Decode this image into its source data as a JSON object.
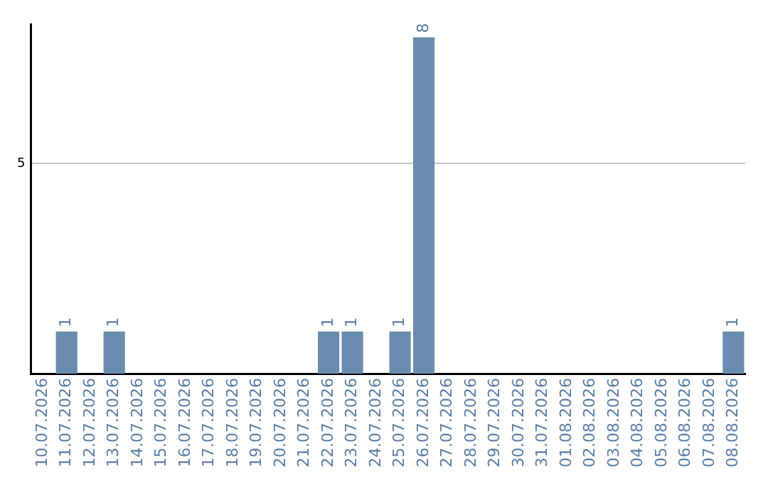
{
  "chart_data": {
    "type": "bar",
    "categories": [
      "10.07.2026",
      "11.07.2026",
      "12.07.2026",
      "13.07.2026",
      "14.07.2026",
      "15.07.2026",
      "16.07.2026",
      "17.07.2026",
      "18.07.2026",
      "19.07.2026",
      "20.07.2026",
      "21.07.2026",
      "22.07.2026",
      "23.07.2026",
      "24.07.2026",
      "25.07.2026",
      "26.07.2026",
      "27.07.2026",
      "28.07.2026",
      "29.07.2026",
      "30.07.2026",
      "31.07.2026",
      "01.08.2026",
      "02.08.2026",
      "03.08.2026",
      "04.08.2026",
      "05.08.2026",
      "06.08.2026",
      "07.08.2026",
      "08.08.2026"
    ],
    "values": [
      0,
      1,
      0,
      1,
      0,
      0,
      0,
      0,
      0,
      0,
      0,
      0,
      1,
      1,
      0,
      1,
      8,
      0,
      0,
      0,
      0,
      0,
      0,
      0,
      0,
      0,
      0,
      0,
      0,
      1
    ],
    "value_labels": [
      null,
      "1",
      null,
      "1",
      null,
      null,
      null,
      null,
      null,
      null,
      null,
      null,
      "1",
      "1",
      null,
      "1",
      "8",
      null,
      null,
      null,
      null,
      null,
      null,
      null,
      null,
      null,
      null,
      null,
      null,
      "1"
    ],
    "color": "#6a8caf",
    "ylim": [
      0,
      8.3
    ],
    "yticks": [
      5
    ],
    "grid": "y"
  }
}
